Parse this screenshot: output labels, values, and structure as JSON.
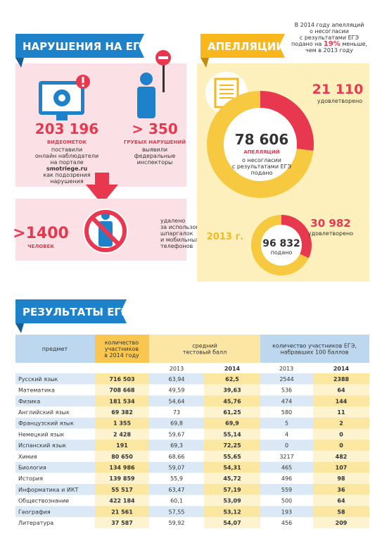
{
  "violations": {
    "title": "НАРУШЕНИЯ НА ЕГЭ",
    "video": {
      "number": "203 196",
      "unit": "ВИДЕОМЕТОК",
      "lines": [
        "поставили",
        "онлайн наблюдатели",
        "на портале",
        "smotriege.ru",
        "как подозрения",
        "нарушения"
      ]
    },
    "gross": {
      "number": "> 350",
      "unit": "ГРУБЫХ НАРУШЕНИЙ",
      "lines": [
        "выявили",
        "федеральные",
        "инспекторы"
      ]
    },
    "removed": {
      "number": ">1400",
      "unit": "ЧЕЛОВЕК",
      "lines": [
        "удалено",
        "за использование",
        "шпаргалок",
        "и мобильных",
        "телефонов"
      ]
    }
  },
  "appeals": {
    "title": "АПЕЛЛЯЦИИ",
    "note": {
      "lines": [
        "В 2014 году апелляций",
        "о несогласии",
        "с результатами ЕГЭ"
      ],
      "line4_start": "подано на",
      "percent": "19%",
      "line4_end": "меньше,",
      "line5": "чем в 2013 году"
    },
    "y2014": {
      "satisfied": {
        "value": 21110,
        "label": "21 110"
      },
      "satisfied_text": "удовлетворено",
      "filed": {
        "value": 78606,
        "label": "78 606"
      },
      "filed_unit": "АПЕЛЛЯЦИЙ",
      "filed_lines": [
        "о несогласии",
        "с результатами ЕГЭ",
        "подано"
      ]
    },
    "y2013": {
      "year": "2013 г.",
      "satisfied": {
        "value": 30982,
        "label": "30 982"
      },
      "satisfied_text": "удовлетворено",
      "filed": {
        "value": 96832,
        "label": "96 832"
      },
      "filed_text": "подано"
    }
  },
  "results": {
    "title": "РЕЗУЛЬТАТЫ ЕГЭ",
    "header": {
      "subject": "предмет",
      "participants": [
        "количество",
        "участников",
        "в 2014 году"
      ],
      "average": [
        "средний",
        "тестовый балл"
      ],
      "hundred": [
        "количество участников ЕГЭ,",
        "набравших 100 баллов"
      ]
    },
    "years": [
      "2013",
      "2014",
      "2013",
      "2014"
    ],
    "rows": [
      [
        "Русский язык",
        "716 503",
        "63,94",
        "62,5",
        "2544",
        "2388"
      ],
      [
        "Математика",
        "708 668",
        "49,59",
        "39,63",
        "536",
        "64"
      ],
      [
        "Физика",
        "181 534",
        "54,64",
        "45,76",
        "474",
        "144"
      ],
      [
        "Английский язык",
        "69 382",
        "73",
        "61,25",
        "580",
        "11"
      ],
      [
        "Французский язык",
        "1 355",
        "69,8",
        "69,9",
        "5",
        "2"
      ],
      [
        "Немецкий язык",
        "2 428",
        "59,67",
        "55,14",
        "4",
        "0"
      ],
      [
        "Испанский язык",
        "191",
        "69,3",
        "72,25",
        "0",
        "0"
      ],
      [
        "Химия",
        "80 650",
        "68,66",
        "55,65",
        "3217",
        "482"
      ],
      [
        "Биология",
        "134 986",
        "59,07",
        "54,31",
        "465",
        "107"
      ],
      [
        "История",
        "139 859",
        "55,9",
        "45,72",
        "496",
        "98"
      ],
      [
        "Информатика и ИКТ",
        "55 517",
        "63,47",
        "57,19",
        "559",
        "36"
      ],
      [
        "Обществознание",
        "422 184",
        "60,1",
        "53,09",
        "500",
        "64"
      ],
      [
        "География",
        "21 561",
        "57,55",
        "53,12",
        "193",
        "58"
      ],
      [
        "Литература",
        "37 587",
        "59,92",
        "54,07",
        "456",
        "209"
      ]
    ]
  }
}
